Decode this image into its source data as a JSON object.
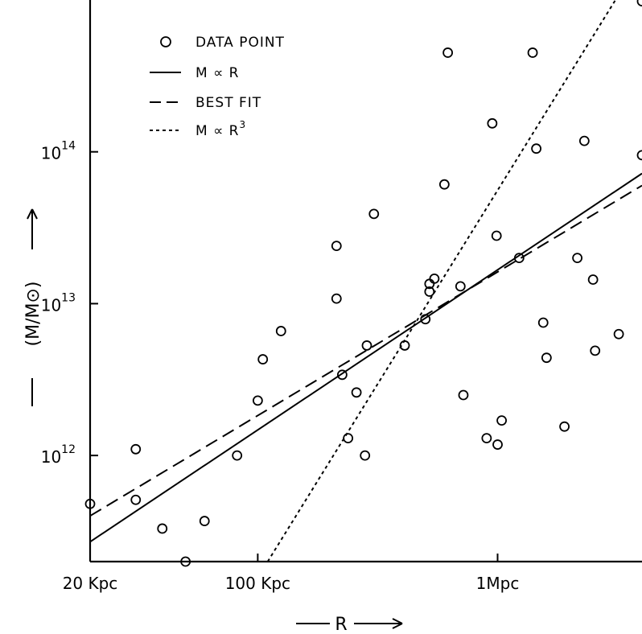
{
  "chart_data": {
    "type": "scatter",
    "xlabel": "R",
    "ylabel": "(M/M⊙)",
    "xscale": "log",
    "yscale": "log",
    "xlim": [
      20,
      4000
    ],
    "ylim": [
      200000000000,
      1000000000000000
    ],
    "x_ticks": [
      {
        "value": 20,
        "label": "20 Kpc"
      },
      {
        "value": 100,
        "label": "100 Kpc"
      },
      {
        "value": 1000,
        "label": "1Mpc"
      }
    ],
    "y_ticks": [
      {
        "value": 1000000000000,
        "base": "10",
        "exp": "12"
      },
      {
        "value": 10000000000000,
        "base": "10",
        "exp": "13"
      },
      {
        "value": 100000000000000,
        "base": "10",
        "exp": "14"
      }
    ],
    "legend": {
      "position": "top-left",
      "entries": [
        {
          "marker": "circle",
          "label": "DATA POINT"
        },
        {
          "marker": "solid-line",
          "label_main": "M ∝ R",
          "label_sup": ""
        },
        {
          "marker": "dashed-line",
          "label_main": "BEST FIT",
          "label_sup": ""
        },
        {
          "marker": "dotted-line",
          "label_main": "M ∝ R",
          "label_sup": "3"
        }
      ]
    },
    "series": [
      {
        "name": "DATA POINT",
        "style": "open-circle",
        "points": [
          [
            20,
            480000000000.0
          ],
          [
            31,
            1100000000000.0
          ],
          [
            31,
            510000000000.0
          ],
          [
            40,
            330000000000.0
          ],
          [
            50,
            200000000000.0
          ],
          [
            60,
            370000000000.0
          ],
          [
            82,
            1000000000000.0
          ],
          [
            100,
            2300000000000.0
          ],
          [
            105,
            4300000000000.0
          ],
          [
            125,
            6600000000000.0
          ],
          [
            213,
            24000000000000.0
          ],
          [
            213,
            10800000000000.0
          ],
          [
            225,
            3400000000000.0
          ],
          [
            238,
            1300000000000.0
          ],
          [
            258,
            2600000000000.0
          ],
          [
            280,
            1000000000000.0
          ],
          [
            285,
            5300000000000.0
          ],
          [
            305,
            39000000000000.0
          ],
          [
            410,
            5300000000000.0
          ],
          [
            500,
            7900000000000.0
          ],
          [
            520,
            12000000000000.0
          ],
          [
            520,
            13500000000000.0
          ],
          [
            545,
            14600000000000.0
          ],
          [
            600,
            61000000000000.0
          ],
          [
            620,
            450000000000000.0
          ],
          [
            700,
            13000000000000.0
          ],
          [
            720,
            2500000000000.0
          ],
          [
            900,
            1300000000000.0
          ],
          [
            950,
            154000000000000.0
          ],
          [
            990,
            28000000000000.0
          ],
          [
            1000,
            1180000000000.0
          ],
          [
            1040,
            1700000000000.0
          ],
          [
            1230,
            20000000000000.0
          ],
          [
            1400,
            450000000000000.0
          ],
          [
            1450,
            105000000000000.0
          ],
          [
            1550,
            7500000000000.0
          ],
          [
            1600,
            4400000000000.0
          ],
          [
            1900,
            1550000000000.0
          ],
          [
            2150,
            20000000000000.0
          ],
          [
            2300,
            118000000000000.0
          ],
          [
            2550,
            4900000000000.0
          ],
          [
            2500,
            14400000000000.0
          ],
          [
            3200,
            6300000000000.0
          ],
          [
            4000,
            95000000000000.0
          ],
          [
            4000,
            980000000000000.0
          ]
        ]
      },
      {
        "name": "M ∝ R",
        "style": "solid",
        "x": [
          20,
          4000
        ],
        "y": [
          270000000000.0,
          72000000000000.0
        ]
      },
      {
        "name": "BEST FIT",
        "style": "dashed",
        "x": [
          20,
          4000
        ],
        "y": [
          400000000000.0,
          60000000000000.0
        ]
      },
      {
        "name": "M ∝ R3",
        "style": "dotted",
        "x": [
          110,
          3100
        ],
        "y": [
          200000000000.0,
          1000000000000000.0
        ]
      }
    ]
  }
}
